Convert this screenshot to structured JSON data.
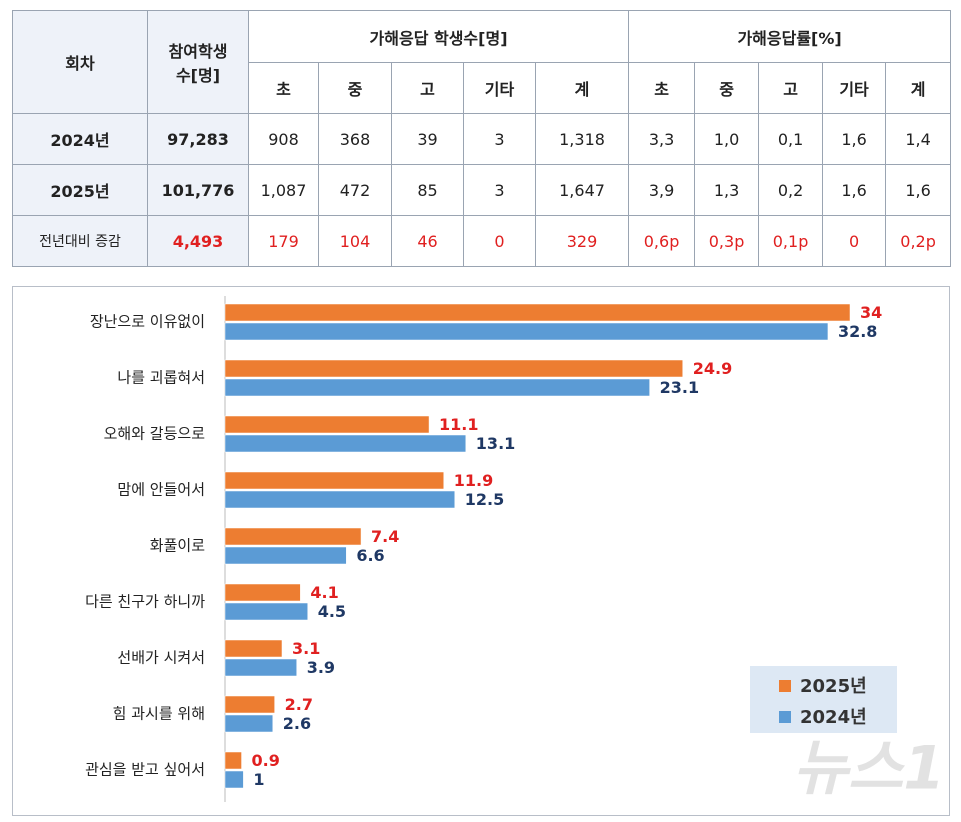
{
  "table": {
    "header": {
      "round": "회차",
      "participants": [
        "참여학생",
        "수[명]"
      ],
      "group1": "가해응답 학생수[명]",
      "group2": "가해응답률[%]",
      "sub": [
        "초",
        "중",
        "고",
        "기타",
        "계",
        "초",
        "중",
        "고",
        "기타",
        "계"
      ]
    },
    "rows": [
      [
        "2024년",
        "97,283",
        "908",
        "368",
        "39",
        "3",
        "1,318",
        "3,3",
        "1,0",
        "0,1",
        "1,6",
        "1,4"
      ],
      [
        "2025년",
        "101,776",
        "1,087",
        "472",
        "85",
        "3",
        "1,647",
        "3,9",
        "1,3",
        "0,2",
        "1,6",
        "1,6"
      ],
      [
        "전년대비 증감",
        "4,493",
        "179",
        "104",
        "46",
        "0",
        "329",
        "0,6p",
        "0,3p",
        "0,1p",
        "0",
        "0,2p"
      ]
    ]
  },
  "chart_data": {
    "type": "horizontal-bar",
    "categories": [
      "장난으로 이유없이",
      "나를 괴롭혀서",
      "오해와 갈등으로",
      "맘에 안들어서",
      "화풀이로",
      "다른 친구가 하니까",
      "선배가 시켜서",
      "힘 과시를 위해",
      "관심을 받고 싶어서"
    ],
    "series": [
      {
        "name": "2025년",
        "color": "#ed7d31",
        "label_color": "#e02020",
        "values": [
          34,
          24.9,
          11.1,
          11.9,
          7.4,
          4.1,
          3.1,
          2.7,
          0.9
        ]
      },
      {
        "name": "2024년",
        "color": "#5b9bd5",
        "label_color": "#1f3864",
        "values": [
          32.8,
          23.1,
          13.1,
          12.5,
          6.6,
          4.5,
          3.9,
          2.6,
          1
        ]
      }
    ],
    "legend": "bottom-right"
  },
  "watermark": "뉴스1"
}
